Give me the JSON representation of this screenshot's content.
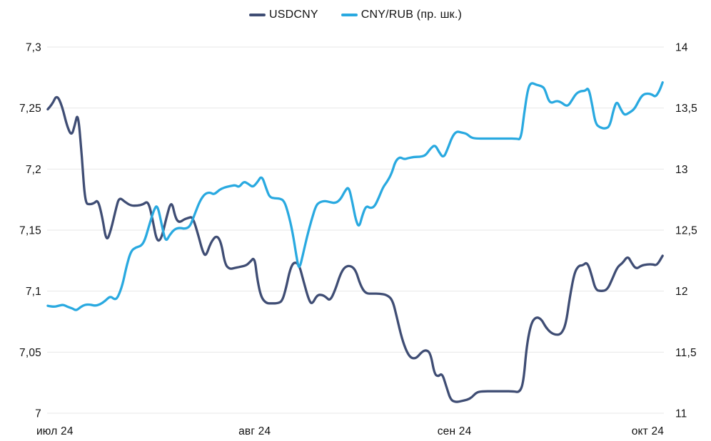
{
  "chart_data": {
    "type": "line",
    "title": "",
    "grid": "horizontal",
    "legend_position": "top-center",
    "background_color": "#ffffff",
    "grid_color": "#e7e7e7",
    "text_color": "#111111",
    "x_axis": {
      "unit": "days since 2024-07-01",
      "range_days": [
        -1.2,
        94.5
      ],
      "ticks": [
        {
          "label": "июл 24",
          "day": 0
        },
        {
          "label": "авг 24",
          "day": 31
        },
        {
          "label": "сен 24",
          "day": 62
        },
        {
          "label": "окт 24",
          "day": 92
        }
      ]
    },
    "left_axis": {
      "range": [
        7.0,
        7.3
      ],
      "ticks": [
        {
          "label": "7,3",
          "value": 7.3
        },
        {
          "label": "7,25",
          "value": 7.25
        },
        {
          "label": "7,2",
          "value": 7.2
        },
        {
          "label": "7,15",
          "value": 7.15
        },
        {
          "label": "7,1",
          "value": 7.1
        },
        {
          "label": "7,05",
          "value": 7.05
        },
        {
          "label": "7",
          "value": 7.0
        }
      ]
    },
    "right_axis": {
      "range": [
        11,
        14
      ],
      "ticks": [
        {
          "label": "14",
          "value": 14
        },
        {
          "label": "13,5",
          "value": 13.5
        },
        {
          "label": "13",
          "value": 13
        },
        {
          "label": "12,5",
          "value": 12.5
        },
        {
          "label": "12",
          "value": 12
        },
        {
          "label": "11,5",
          "value": 11.5
        },
        {
          "label": "11",
          "value": 11
        }
      ]
    },
    "series": [
      {
        "name": "USDCNY",
        "axis": "left",
        "color": "#3f4d74",
        "points": [
          [
            -1.1,
            7.249
          ],
          [
            -0.4,
            7.253
          ],
          [
            0.3,
            7.261
          ],
          [
            1.1,
            7.252
          ],
          [
            1.9,
            7.235
          ],
          [
            2.6,
            7.227
          ],
          [
            3.1,
            7.236
          ],
          [
            3.6,
            7.247
          ],
          [
            4.2,
            7.21
          ],
          [
            4.7,
            7.172
          ],
          [
            5.4,
            7.171
          ],
          [
            6.1,
            7.172
          ],
          [
            6.7,
            7.175
          ],
          [
            7.4,
            7.16
          ],
          [
            8.0,
            7.14
          ],
          [
            8.7,
            7.15
          ],
          [
            9.5,
            7.168
          ],
          [
            10.0,
            7.177
          ],
          [
            10.9,
            7.173
          ],
          [
            11.8,
            7.17
          ],
          [
            12.8,
            7.17
          ],
          [
            13.7,
            7.171
          ],
          [
            14.5,
            7.174
          ],
          [
            15.2,
            7.158
          ],
          [
            15.8,
            7.141
          ],
          [
            16.5,
            7.142
          ],
          [
            17.3,
            7.16
          ],
          [
            18.1,
            7.175
          ],
          [
            18.7,
            7.16
          ],
          [
            19.3,
            7.156
          ],
          [
            20.1,
            7.159
          ],
          [
            20.7,
            7.16
          ],
          [
            21.4,
            7.161
          ],
          [
            22.3,
            7.145
          ],
          [
            22.9,
            7.133
          ],
          [
            23.4,
            7.128
          ],
          [
            24.2,
            7.14
          ],
          [
            25.1,
            7.146
          ],
          [
            25.8,
            7.14
          ],
          [
            26.4,
            7.122
          ],
          [
            27.1,
            7.118
          ],
          [
            27.9,
            7.119
          ],
          [
            28.8,
            7.12
          ],
          [
            29.7,
            7.121
          ],
          [
            30.3,
            7.124
          ],
          [
            31.0,
            7.128
          ],
          [
            31.4,
            7.11
          ],
          [
            32.0,
            7.095
          ],
          [
            32.8,
            7.09
          ],
          [
            33.7,
            7.09
          ],
          [
            34.6,
            7.09
          ],
          [
            35.3,
            7.092
          ],
          [
            35.9,
            7.103
          ],
          [
            36.5,
            7.118
          ],
          [
            37.1,
            7.124
          ],
          [
            37.9,
            7.122
          ],
          [
            38.6,
            7.108
          ],
          [
            39.4,
            7.093
          ],
          [
            39.9,
            7.089
          ],
          [
            40.7,
            7.097
          ],
          [
            41.5,
            7.097
          ],
          [
            42.1,
            7.095
          ],
          [
            42.7,
            7.092
          ],
          [
            43.5,
            7.101
          ],
          [
            44.3,
            7.114
          ],
          [
            45.0,
            7.12
          ],
          [
            45.9,
            7.121
          ],
          [
            46.7,
            7.117
          ],
          [
            47.4,
            7.105
          ],
          [
            48.2,
            7.098
          ],
          [
            49.3,
            7.098
          ],
          [
            50.4,
            7.098
          ],
          [
            51.5,
            7.097
          ],
          [
            52.4,
            7.093
          ],
          [
            53.1,
            7.078
          ],
          [
            53.8,
            7.062
          ],
          [
            54.6,
            7.05
          ],
          [
            55.3,
            7.045
          ],
          [
            56.1,
            7.045
          ],
          [
            56.9,
            7.05
          ],
          [
            57.6,
            7.052
          ],
          [
            58.3,
            7.049
          ],
          [
            58.9,
            7.032
          ],
          [
            59.5,
            7.03
          ],
          [
            60.1,
            7.033
          ],
          [
            60.8,
            7.021
          ],
          [
            61.4,
            7.011
          ],
          [
            62.2,
            7.009
          ],
          [
            63.1,
            7.01
          ],
          [
            64.0,
            7.011
          ],
          [
            64.7,
            7.013
          ],
          [
            65.4,
            7.017
          ],
          [
            66.3,
            7.018
          ],
          [
            68.0,
            7.018
          ],
          [
            69.7,
            7.018
          ],
          [
            71.1,
            7.018
          ],
          [
            72.1,
            7.017
          ],
          [
            72.7,
            7.025
          ],
          [
            73.2,
            7.055
          ],
          [
            73.9,
            7.074
          ],
          [
            74.7,
            7.079
          ],
          [
            75.5,
            7.077
          ],
          [
            76.1,
            7.071
          ],
          [
            76.9,
            7.066
          ],
          [
            77.8,
            7.064
          ],
          [
            78.6,
            7.065
          ],
          [
            79.3,
            7.073
          ],
          [
            79.9,
            7.095
          ],
          [
            80.6,
            7.115
          ],
          [
            81.3,
            7.121
          ],
          [
            81.9,
            7.121
          ],
          [
            82.6,
            7.124
          ],
          [
            83.3,
            7.113
          ],
          [
            83.9,
            7.101
          ],
          [
            84.8,
            7.1
          ],
          [
            85.7,
            7.101
          ],
          [
            86.5,
            7.11
          ],
          [
            87.3,
            7.12
          ],
          [
            88.1,
            7.123
          ],
          [
            88.9,
            7.129
          ],
          [
            89.5,
            7.123
          ],
          [
            90.2,
            7.118
          ],
          [
            91.0,
            7.121
          ],
          [
            91.9,
            7.122
          ],
          [
            92.8,
            7.122
          ],
          [
            93.4,
            7.121
          ],
          [
            94.3,
            7.129
          ]
        ]
      },
      {
        "name": "CNY/RUB (пр. шк.)",
        "axis": "right",
        "color": "#29a9e0",
        "points": [
          [
            -1.1,
            11.88
          ],
          [
            -0.2,
            11.87
          ],
          [
            0.6,
            11.88
          ],
          [
            1.3,
            11.89
          ],
          [
            2.0,
            11.87
          ],
          [
            2.7,
            11.86
          ],
          [
            3.3,
            11.84
          ],
          [
            4.0,
            11.87
          ],
          [
            4.7,
            11.89
          ],
          [
            5.5,
            11.89
          ],
          [
            6.2,
            11.88
          ],
          [
            7.0,
            11.89
          ],
          [
            7.8,
            11.92
          ],
          [
            8.6,
            11.96
          ],
          [
            9.3,
            11.93
          ],
          [
            9.8,
            11.95
          ],
          [
            10.5,
            12.05
          ],
          [
            11.1,
            12.2
          ],
          [
            11.8,
            12.33
          ],
          [
            12.6,
            12.36
          ],
          [
            13.4,
            12.37
          ],
          [
            14.0,
            12.42
          ],
          [
            14.7,
            12.55
          ],
          [
            15.4,
            12.67
          ],
          [
            15.9,
            12.71
          ],
          [
            16.6,
            12.54
          ],
          [
            17.2,
            12.4
          ],
          [
            17.8,
            12.46
          ],
          [
            18.6,
            12.51
          ],
          [
            19.4,
            12.52
          ],
          [
            20.2,
            12.51
          ],
          [
            21.0,
            12.53
          ],
          [
            21.7,
            12.63
          ],
          [
            22.5,
            12.74
          ],
          [
            23.3,
            12.8
          ],
          [
            24.1,
            12.81
          ],
          [
            24.7,
            12.79
          ],
          [
            25.5,
            12.83
          ],
          [
            26.3,
            12.85
          ],
          [
            27.2,
            12.86
          ],
          [
            28.0,
            12.87
          ],
          [
            28.6,
            12.85
          ],
          [
            29.3,
            12.9
          ],
          [
            30.0,
            12.88
          ],
          [
            30.7,
            12.85
          ],
          [
            31.4,
            12.89
          ],
          [
            32.1,
            12.95
          ],
          [
            32.8,
            12.84
          ],
          [
            33.3,
            12.77
          ],
          [
            34.1,
            12.76
          ],
          [
            34.9,
            12.76
          ],
          [
            35.6,
            12.74
          ],
          [
            36.2,
            12.64
          ],
          [
            36.9,
            12.48
          ],
          [
            37.5,
            12.28
          ],
          [
            37.9,
            12.17
          ],
          [
            38.5,
            12.3
          ],
          [
            39.1,
            12.44
          ],
          [
            39.8,
            12.58
          ],
          [
            40.5,
            12.7
          ],
          [
            41.1,
            12.73
          ],
          [
            41.9,
            12.74
          ],
          [
            42.7,
            12.73
          ],
          [
            43.5,
            12.72
          ],
          [
            44.3,
            12.75
          ],
          [
            45.0,
            12.82
          ],
          [
            45.6,
            12.86
          ],
          [
            46.2,
            12.72
          ],
          [
            46.7,
            12.58
          ],
          [
            47.2,
            12.52
          ],
          [
            47.7,
            12.62
          ],
          [
            48.3,
            12.7
          ],
          [
            48.9,
            12.68
          ],
          [
            49.6,
            12.69
          ],
          [
            50.3,
            12.77
          ],
          [
            50.9,
            12.85
          ],
          [
            51.6,
            12.9
          ],
          [
            52.3,
            12.97
          ],
          [
            52.8,
            13.06
          ],
          [
            53.5,
            13.1
          ],
          [
            54.2,
            13.08
          ],
          [
            54.8,
            13.09
          ],
          [
            55.7,
            13.1
          ],
          [
            56.6,
            13.1
          ],
          [
            57.5,
            13.11
          ],
          [
            58.3,
            13.17
          ],
          [
            59.0,
            13.2
          ],
          [
            59.6,
            13.14
          ],
          [
            60.3,
            13.09
          ],
          [
            60.9,
            13.16
          ],
          [
            61.6,
            13.26
          ],
          [
            62.3,
            13.31
          ],
          [
            63.1,
            13.3
          ],
          [
            63.9,
            13.29
          ],
          [
            64.5,
            13.26
          ],
          [
            65.3,
            13.25
          ],
          [
            66.9,
            13.25
          ],
          [
            68.6,
            13.25
          ],
          [
            70.2,
            13.25
          ],
          [
            71.6,
            13.25
          ],
          [
            72.3,
            13.24
          ],
          [
            72.8,
            13.45
          ],
          [
            73.4,
            13.66
          ],
          [
            73.9,
            13.71
          ],
          [
            74.7,
            13.69
          ],
          [
            75.5,
            13.68
          ],
          [
            76.0,
            13.66
          ],
          [
            76.6,
            13.56
          ],
          [
            77.1,
            13.54
          ],
          [
            77.8,
            13.56
          ],
          [
            78.5,
            13.55
          ],
          [
            79.2,
            13.52
          ],
          [
            79.7,
            13.52
          ],
          [
            80.3,
            13.57
          ],
          [
            80.9,
            13.62
          ],
          [
            81.6,
            13.64
          ],
          [
            82.3,
            13.64
          ],
          [
            82.8,
            13.67
          ],
          [
            83.4,
            13.52
          ],
          [
            83.9,
            13.37
          ],
          [
            84.6,
            13.34
          ],
          [
            85.4,
            13.33
          ],
          [
            86.1,
            13.35
          ],
          [
            86.7,
            13.49
          ],
          [
            87.2,
            13.56
          ],
          [
            87.8,
            13.49
          ],
          [
            88.4,
            13.44
          ],
          [
            89.1,
            13.46
          ],
          [
            89.9,
            13.49
          ],
          [
            90.5,
            13.55
          ],
          [
            91.2,
            13.61
          ],
          [
            92.0,
            13.62
          ],
          [
            92.7,
            13.61
          ],
          [
            93.2,
            13.59
          ],
          [
            93.8,
            13.64
          ],
          [
            94.3,
            13.71
          ]
        ]
      }
    ]
  }
}
